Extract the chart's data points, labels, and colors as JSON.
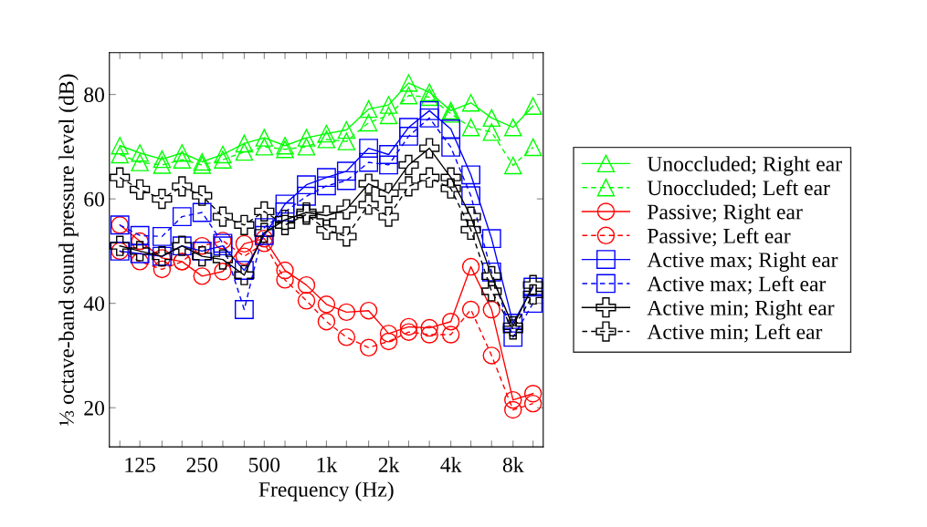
{
  "chart_data": {
    "type": "line",
    "xlabel": "Frequency (Hz)",
    "ylabel": "⅓ octave-band sound pressure level (dB)",
    "x": [
      100,
      125,
      160,
      200,
      250,
      315,
      400,
      500,
      630,
      800,
      1000,
      1250,
      1600,
      2000,
      2500,
      3150,
      4000,
      5000,
      6300,
      8000,
      10000
    ],
    "log": "x",
    "xlim": [
      89,
      11200
    ],
    "ylim": [
      12.5,
      88
    ],
    "yticks": [
      20,
      40,
      60,
      80
    ],
    "xticks": [
      {
        "value": 100,
        "label": null
      },
      {
        "value": 125,
        "label": "125"
      },
      {
        "value": 160,
        "label": null
      },
      {
        "value": 200,
        "label": null
      },
      {
        "value": 250,
        "label": "250"
      },
      {
        "value": 315,
        "label": null
      },
      {
        "value": 400,
        "label": null
      },
      {
        "value": 500,
        "label": "500"
      },
      {
        "value": 630,
        "label": null
      },
      {
        "value": 800,
        "label": null
      },
      {
        "value": 1000,
        "label": "1k"
      },
      {
        "value": 1250,
        "label": null
      },
      {
        "value": 1600,
        "label": null
      },
      {
        "value": 2000,
        "label": "2k"
      },
      {
        "value": 2500,
        "label": null
      },
      {
        "value": 3150,
        "label": null
      },
      {
        "value": 4000,
        "label": "4k"
      },
      {
        "value": 5000,
        "label": null
      },
      {
        "value": 6300,
        "label": null
      },
      {
        "value": 8000,
        "label": "8k"
      },
      {
        "value": 10000,
        "label": null
      }
    ],
    "grid": false,
    "legend": "right",
    "series": [
      {
        "name": "Unoccluded; Right ear",
        "color": "#00ff00",
        "marker": "triangle",
        "line_style": "solid",
        "values": [
          70.2,
          68.8,
          67.6,
          68.8,
          67.1,
          68.5,
          70.6,
          71.7,
          70.2,
          71.7,
          72.5,
          73.2,
          77.2,
          78,
          82.2,
          80.4,
          76.9,
          78.4,
          75.5,
          73.7,
          77.8
        ]
      },
      {
        "name": "Unoccluded; Left ear",
        "color": "#00ff00",
        "marker": "triangle",
        "line_style": "dashed",
        "values": [
          68.5,
          67,
          66.5,
          67.5,
          66.5,
          67.5,
          69,
          70,
          69.5,
          70,
          71.4,
          71,
          74.6,
          76,
          79.8,
          79.5,
          76.3,
          73.7,
          72.8,
          66.4,
          69.9
        ]
      },
      {
        "name": "Passive; Right ear",
        "color": "#ff0000",
        "marker": "circle",
        "line_style": "solid",
        "values": [
          55,
          51.9,
          48.7,
          48,
          45.2,
          46.1,
          51.4,
          52.4,
          46.3,
          43.5,
          39.8,
          38.3,
          38.6,
          34.2,
          35.5,
          35.3,
          36.5,
          47,
          38.8,
          21.5,
          22.7
        ]
      },
      {
        "name": "Passive; Left ear",
        "color": "#ff0000",
        "marker": "circle",
        "line_style": "dashed",
        "values": [
          50,
          48,
          46.5,
          48,
          51,
          52,
          49,
          51.5,
          44.5,
          40.5,
          36.5,
          33.5,
          31.5,
          32.7,
          34.5,
          34,
          34,
          38.8,
          30,
          19.6,
          20.8
        ]
      },
      {
        "name": "Active max; Right ear",
        "color": "#0000ff",
        "marker": "square",
        "line_style": "solid",
        "values": [
          50,
          49.5,
          49,
          51,
          50,
          51,
          46.3,
          53,
          59,
          62.7,
          64.1,
          65.3,
          69.7,
          68.5,
          73.7,
          76.9,
          73.4,
          64.6,
          52.4,
          36.2,
          43.1
        ]
      },
      {
        "name": "Active max; Left ear",
        "color": "#0000ff",
        "marker": "square",
        "line_style": "dashed",
        "values": [
          55,
          53,
          52.8,
          56.6,
          57.4,
          51.5,
          38.8,
          54.5,
          57.5,
          60.5,
          62.5,
          63.5,
          67,
          66.5,
          72,
          75.5,
          69.9,
          60.6,
          46,
          33.5,
          40
        ]
      },
      {
        "name": "Active min; Right ear",
        "color": "#000000",
        "marker": "cross",
        "line_style": "solid",
        "values": [
          51,
          50,
          49,
          51,
          49,
          48.4,
          45.4,
          53.5,
          56,
          57.4,
          56.8,
          58,
          62.9,
          61.1,
          66.5,
          69.7,
          64.1,
          56.6,
          45.2,
          35.6,
          43.5
        ]
      },
      {
        "name": "Active min; Left ear",
        "color": "#000000",
        "marker": "cross",
        "line_style": "dashed",
        "values": [
          64.1,
          61.8,
          60,
          62.4,
          60.6,
          56.6,
          55,
          57.6,
          55,
          57,
          54.1,
          52.8,
          58.9,
          56.6,
          62.4,
          64.1,
          62,
          54.1,
          42.3,
          35,
          41.7
        ]
      }
    ]
  }
}
